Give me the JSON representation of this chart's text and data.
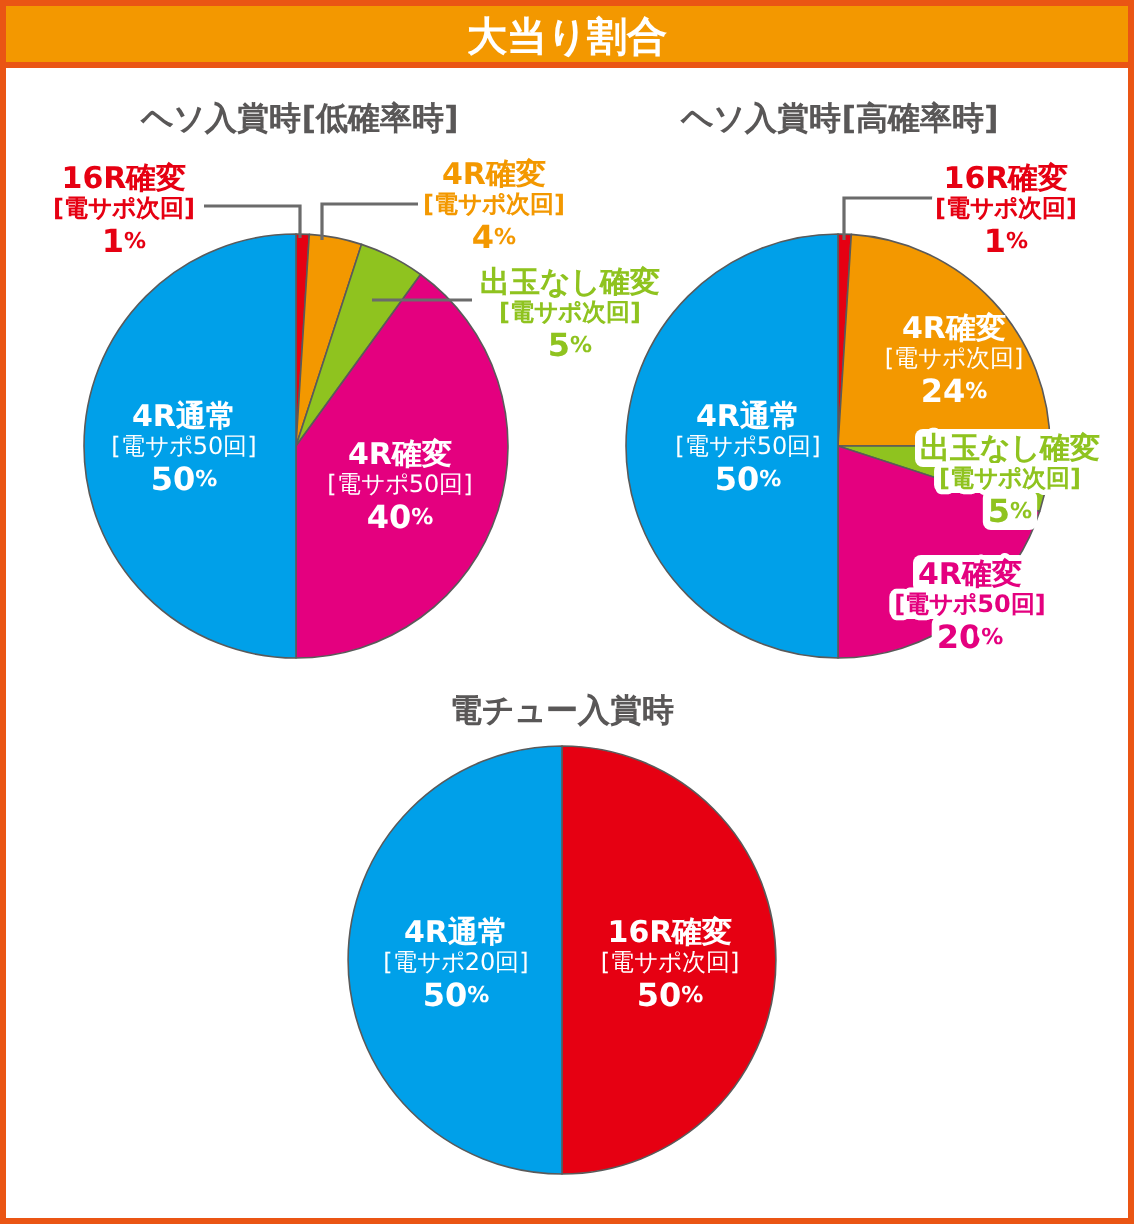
{
  "chart_data": [
    {
      "type": "pie",
      "title": "大当り割合",
      "subtitle": "ヘソ入賞時[低確率時]",
      "categories": [
        "16R確変\n[電サポ次回]",
        "4R確変\n[電サポ次回]",
        "出玉なし確変\n[電サポ次回]",
        "4R確変\n[電サポ50回]",
        "4R通常\n[電サポ50回]"
      ],
      "values": [
        1,
        4,
        5,
        40,
        50
      ],
      "value_labels": [
        "1%",
        "4%",
        "5%",
        "40%",
        "50%"
      ],
      "colors": [
        "#e60012",
        "#f39800",
        "#8fc31f",
        "#e4007f",
        "#00a0e9"
      ]
    },
    {
      "type": "pie",
      "title": "ヘソ入賞時[高確率時]",
      "categories": [
        "16R確変\n[電サポ次回]",
        "4R確変\n[電サポ次回]",
        "出玉なし確変\n[電サポ次回]",
        "4R確変\n[電サポ50回]",
        "4R通常\n[電サポ50回]"
      ],
      "values": [
        1,
        24,
        5,
        20,
        50
      ],
      "value_labels": [
        "1%",
        "24%",
        "5%",
        "20%",
        "50%"
      ],
      "colors": [
        "#e60012",
        "#f39800",
        "#8fc31f",
        "#e4007f",
        "#00a0e9"
      ]
    },
    {
      "type": "pie",
      "title": "電チュー入賞時",
      "categories": [
        "16R確変\n[電サポ次回]",
        "4R通常\n[電サポ20回]"
      ],
      "values": [
        50,
        50
      ],
      "value_labels": [
        "50%",
        "50%"
      ],
      "colors": [
        "#e60012",
        "#00a0e9"
      ]
    }
  ]
}
